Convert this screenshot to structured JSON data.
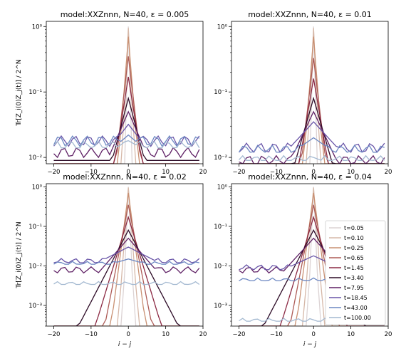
{
  "legend_items": [
    "t=0.05",
    "t=0.10",
    "t=0.25",
    "t=0.65",
    "t=1.45",
    "t=3.40",
    "t=7.95",
    "t=18.45",
    "t=43.00",
    "t=100.00"
  ],
  "colors": [
    "#dcd3d4",
    "#d6b8a8",
    "#c99072",
    "#ae5c57",
    "#8c2a44",
    "#2d0b27",
    "#5e1f64",
    "#6955a8",
    "#6c87c2",
    "#a4b9d1"
  ],
  "chart_data": [
    {
      "type": "line",
      "title": "model:XXZnnn, N=40, ε = 0.005",
      "xlabel": "",
      "ylabel": "Tr[Z_i(0)Z_j(t)] / 2^N",
      "xlim": [
        -22,
        20
      ],
      "ylim": [
        0.008,
        1.2
      ],
      "yscale": "log",
      "xticks": [
        "−20",
        "−10",
        "0",
        "10",
        "20"
      ],
      "yticks": [
        "10⁻²",
        "10⁻¹",
        "10⁰"
      ],
      "series": [
        {
          "name": "t=0.05",
          "floor": 0.008,
          "peak": 1.0,
          "decay": 0.2,
          "tail": 0
        },
        {
          "name": "t=0.10",
          "floor": 0.008,
          "peak": 0.95,
          "decay": 0.35,
          "tail": 0
        },
        {
          "name": "t=0.25",
          "floor": 0.008,
          "peak": 0.7,
          "decay": 0.6,
          "tail": 0
        },
        {
          "name": "t=0.65",
          "floor": 0.008,
          "peak": 0.35,
          "decay": 0.9,
          "tail": 0
        },
        {
          "name": "t=1.45",
          "floor": 0.008,
          "peak": 0.17,
          "decay": 1.2,
          "tail": 0
        },
        {
          "name": "t=3.40",
          "floor": 0.009,
          "peak": 0.08,
          "decay": 2.0,
          "tail": 0
        },
        {
          "name": "t=7.95",
          "floor": 0.01,
          "peak": 0.05,
          "decay": 3.3,
          "tail": 0.012
        },
        {
          "name": "t=18.45",
          "floor": 0.012,
          "peak": 0.032,
          "decay": 6.0,
          "tail": 0.018
        },
        {
          "name": "t=43.00",
          "floor": 0.014,
          "peak": 0.022,
          "decay": 9.0,
          "tail": 0.018
        },
        {
          "name": "t=100.00",
          "floor": 0.014,
          "peak": 0.018,
          "decay": 14.0,
          "tail": 0.015
        }
      ]
    },
    {
      "type": "line",
      "title": "model:XXZnnn, N=40, ε = 0.01",
      "xlabel": "",
      "ylabel": "",
      "xlim": [
        -22,
        20
      ],
      "ylim": [
        0.008,
        1.2
      ],
      "yscale": "log",
      "xticks": [
        "−20",
        "−10",
        "0",
        "10",
        "20"
      ],
      "yticks": [
        "10⁻²",
        "10⁻¹",
        "10⁰"
      ],
      "series": [
        {
          "name": "t=0.05",
          "floor": 0.008,
          "peak": 1.0,
          "decay": 0.2,
          "tail": 0
        },
        {
          "name": "t=0.10",
          "floor": 0.008,
          "peak": 0.95,
          "decay": 0.35,
          "tail": 0
        },
        {
          "name": "t=0.25",
          "floor": 0.008,
          "peak": 0.7,
          "decay": 0.6,
          "tail": 0
        },
        {
          "name": "t=0.65",
          "floor": 0.008,
          "peak": 0.33,
          "decay": 0.9,
          "tail": 0
        },
        {
          "name": "t=1.45",
          "floor": 0.008,
          "peak": 0.16,
          "decay": 1.3,
          "tail": 0
        },
        {
          "name": "t=3.40",
          "floor": 0.008,
          "peak": 0.08,
          "decay": 2.2,
          "tail": 0
        },
        {
          "name": "t=7.95",
          "floor": 0.008,
          "peak": 0.05,
          "decay": 3.6,
          "tail": 0.009
        },
        {
          "name": "t=18.45",
          "floor": 0.012,
          "peak": 0.035,
          "decay": 7.0,
          "tail": 0.014
        },
        {
          "name": "t=43.00",
          "floor": 0.012,
          "peak": 0.02,
          "decay": 11.0,
          "tail": 0.013
        },
        {
          "name": "t=100.00",
          "floor": 0.009,
          "peak": 0.01,
          "decay": 20.0,
          "tail": 0.009
        }
      ]
    },
    {
      "type": "line",
      "title": "model:XXZnnn, N=40, ε = 0.02",
      "xlabel": "i − j",
      "ylabel": "Tr[Z_i(0)Z_j(t)] / 2^N",
      "xlim": [
        -22,
        20
      ],
      "ylim": [
        0.0003,
        1.2
      ],
      "yscale": "log",
      "xticks": [
        "−20",
        "−10",
        "0",
        "10",
        "20"
      ],
      "yticks": [
        "10⁻³",
        "10⁻²",
        "10⁻¹",
        "10⁰"
      ],
      "series": [
        {
          "name": "t=0.05",
          "floor": 0.0003,
          "peak": 1.0,
          "decay": 0.2,
          "tail": 0
        },
        {
          "name": "t=0.10",
          "floor": 0.0003,
          "peak": 0.95,
          "decay": 0.35,
          "tail": 0
        },
        {
          "name": "t=0.25",
          "floor": 0.0003,
          "peak": 0.7,
          "decay": 0.6,
          "tail": 0
        },
        {
          "name": "t=0.65",
          "floor": 0.0003,
          "peak": 0.35,
          "decay": 0.9,
          "tail": 0
        },
        {
          "name": "t=1.45",
          "floor": 0.0003,
          "peak": 0.17,
          "decay": 1.4,
          "tail": 0
        },
        {
          "name": "t=3.40",
          "floor": 0.0003,
          "peak": 0.08,
          "decay": 2.4,
          "tail": 0
        },
        {
          "name": "t=7.95",
          "floor": 0.0003,
          "peak": 0.05,
          "decay": 4.0,
          "tail": 0.008
        },
        {
          "name": "t=18.45",
          "floor": 0.012,
          "peak": 0.03,
          "decay": 9.0,
          "tail": 0.013
        },
        {
          "name": "t=43.00",
          "floor": 0.011,
          "peak": 0.015,
          "decay": 16.0,
          "tail": 0.011
        },
        {
          "name": "t=100.00",
          "floor": 0.0034,
          "peak": 0.0034,
          "decay": 30.0,
          "tail": 0.0034
        }
      ]
    },
    {
      "type": "line",
      "title": "model:XXZnnn, N=40, ε = 0.04",
      "xlabel": "i − j",
      "ylabel": "",
      "xlim": [
        -22,
        20
      ],
      "ylim": [
        0.0003,
        1.2
      ],
      "yscale": "log",
      "xticks": [
        "−20",
        "−10",
        "0",
        "10",
        "20"
      ],
      "yticks": [
        "10⁻³",
        "10⁻²",
        "10⁻¹",
        "10⁰"
      ],
      "legend": "right",
      "series": [
        {
          "name": "t=0.05",
          "floor": 0.0003,
          "peak": 1.0,
          "decay": 0.2,
          "tail": 0
        },
        {
          "name": "t=0.10",
          "floor": 0.0003,
          "peak": 0.95,
          "decay": 0.35,
          "tail": 0
        },
        {
          "name": "t=0.25",
          "floor": 0.0003,
          "peak": 0.7,
          "decay": 0.6,
          "tail": 0
        },
        {
          "name": "t=0.65",
          "floor": 0.0003,
          "peak": 0.35,
          "decay": 0.9,
          "tail": 0
        },
        {
          "name": "t=1.45",
          "floor": 0.0003,
          "peak": 0.17,
          "decay": 1.4,
          "tail": 0
        },
        {
          "name": "t=3.40",
          "floor": 0.0003,
          "peak": 0.08,
          "decay": 2.4,
          "tail": 0
        },
        {
          "name": "t=7.95",
          "floor": 0.0003,
          "peak": 0.05,
          "decay": 4.2,
          "tail": 0.008
        },
        {
          "name": "t=18.45",
          "floor": 0.008,
          "peak": 0.018,
          "decay": 10.0,
          "tail": 0.009
        },
        {
          "name": "t=43.00",
          "floor": 0.0042,
          "peak": 0.0045,
          "decay": 30.0,
          "tail": 0.0042
        },
        {
          "name": "t=100.00",
          "floor": 0.0004,
          "peak": 0.0004,
          "decay": 40.0,
          "tail": 0.0004
        }
      ]
    }
  ]
}
